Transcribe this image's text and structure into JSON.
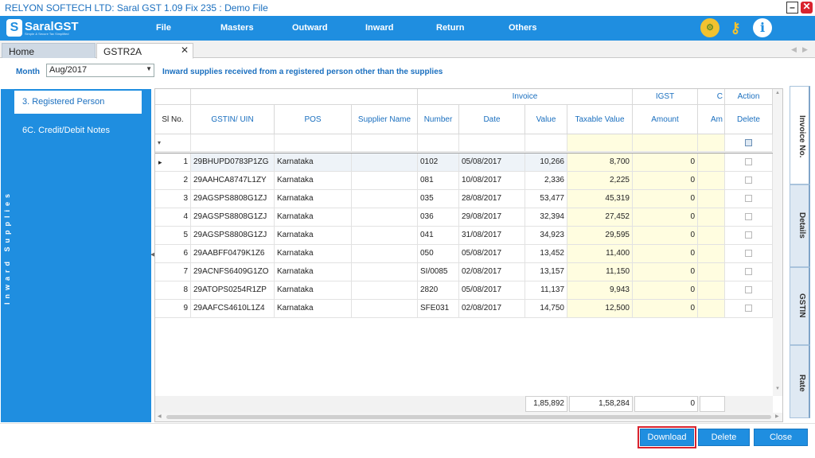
{
  "window": {
    "title": "RELYON SOFTECH LTD: Saral GST  1.09 Fix 235 : Demo File",
    "minimize": "–",
    "close": "✕"
  },
  "logo": {
    "mark": "S",
    "brand": "SaralGST",
    "tagline": "Simple & Secure Tax Simplified"
  },
  "menu": [
    "File",
    "Masters",
    "Outward",
    "Inward",
    "Return",
    "Others"
  ],
  "icons": {
    "settings": "gear-icon",
    "tools": "key-icon",
    "info": "info-icon"
  },
  "tabs": [
    {
      "label": "Home"
    },
    {
      "label": "GSTR2A",
      "close": "✕"
    }
  ],
  "month": {
    "label": "Month",
    "value": "Aug/2017"
  },
  "description": "Inward supplies received from a registered person other than the supplies",
  "sidebar": {
    "vertical_label": "Inward Supplies",
    "items": [
      {
        "label": "3. Registered Person"
      },
      {
        "label": "6C. Credit/Debit Notes"
      }
    ]
  },
  "grid": {
    "group_headers": {
      "invoice": "Invoice",
      "igst": "IGST",
      "c": "C",
      "action": "Action"
    },
    "columns": [
      "Sl No.",
      "GSTIN/ UIN",
      "POS",
      "Supplier Name",
      "Number",
      "Date",
      "Value",
      "Taxable Value",
      "Amount",
      "Am",
      "Delete"
    ],
    "rows": [
      {
        "sl": "1",
        "gstin": "29BHUPD0783P1ZG",
        "pos": "Karnataka",
        "supplier": "",
        "number": "0102",
        "date": "05/08/2017",
        "value": "10,266",
        "taxable": "8,700",
        "amount": "0"
      },
      {
        "sl": "2",
        "gstin": "29AAHCA8747L1ZY",
        "pos": "Karnataka",
        "supplier": "",
        "number": "081",
        "date": "10/08/2017",
        "value": "2,336",
        "taxable": "2,225",
        "amount": "0"
      },
      {
        "sl": "3",
        "gstin": "29AGSPS8808G1ZJ",
        "pos": "Karnataka",
        "supplier": "",
        "number": "035",
        "date": "28/08/2017",
        "value": "53,477",
        "taxable": "45,319",
        "amount": "0"
      },
      {
        "sl": "4",
        "gstin": "29AGSPS8808G1ZJ",
        "pos": "Karnataka",
        "supplier": "",
        "number": "036",
        "date": "29/08/2017",
        "value": "32,394",
        "taxable": "27,452",
        "amount": "0"
      },
      {
        "sl": "5",
        "gstin": "29AGSPS8808G1ZJ",
        "pos": "Karnataka",
        "supplier": "",
        "number": "041",
        "date": "31/08/2017",
        "value": "34,923",
        "taxable": "29,595",
        "amount": "0"
      },
      {
        "sl": "6",
        "gstin": "29AABFF0479K1Z6",
        "pos": "Karnataka",
        "supplier": "",
        "number": "050",
        "date": "05/08/2017",
        "value": "13,452",
        "taxable": "11,400",
        "amount": "0"
      },
      {
        "sl": "7",
        "gstin": "29ACNFS6409G1ZO",
        "pos": "Karnataka",
        "supplier": "",
        "number": "SI/0085",
        "date": "02/08/2017",
        "value": "13,157",
        "taxable": "11,150",
        "amount": "0"
      },
      {
        "sl": "8",
        "gstin": "29ATOPS0254R1ZP",
        "pos": "Karnataka",
        "supplier": "",
        "number": "2820",
        "date": "05/08/2017",
        "value": "11,137",
        "taxable": "9,943",
        "amount": "0"
      },
      {
        "sl": "9",
        "gstin": "29AAFCS4610L1Z4",
        "pos": "Karnataka",
        "supplier": "",
        "number": "SFE031",
        "date": "02/08/2017",
        "value": "14,750",
        "taxable": "12,500",
        "amount": "0"
      }
    ],
    "totals": {
      "value": "1,85,892",
      "taxable": "1,58,284",
      "amount": "0"
    }
  },
  "right_tabs": [
    "Invoice No.",
    "Details",
    "GSTIN",
    "Rate"
  ],
  "buttons": {
    "download": "Download",
    "delete": "Delete",
    "close": "Close"
  }
}
